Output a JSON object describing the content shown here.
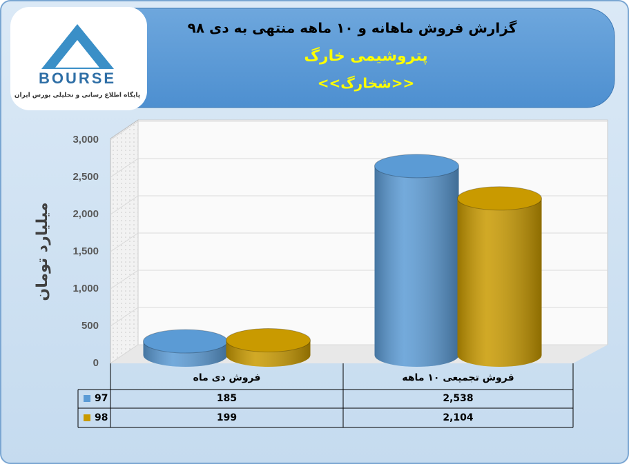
{
  "logo": {
    "name": "BOURSE",
    "tagline": "پایگاه اطلاع رسانی و تحلیلی بورس ایران"
  },
  "chart_data": {
    "type": "cylinder",
    "title": "گزارش فروش ماهانه و ۱۰ ماهه منتهی به دی ۹۸",
    "subtitle": "پتروشیمی خارگ",
    "symbol": "<<شخارگ>>",
    "y_label": "میلیارد تومان",
    "categories": [
      "فروش دی  ماه",
      "فروش تجمیعی ۱۰ ماهه"
    ],
    "series": [
      {
        "name": "97",
        "color": "#5b9bd5",
        "values": [
          185,
          2538
        ],
        "value_labels": [
          "185",
          "2,538"
        ]
      },
      {
        "name": "98",
        "color": "#c99a00",
        "values": [
          199,
          2104
        ],
        "value_labels": [
          "199",
          "2,104"
        ]
      }
    ],
    "ylim": [
      0,
      3000
    ],
    "yticks": [
      0,
      500,
      {
        "value": 1000,
        "label": "1,000"
      },
      {
        "value": 1500,
        "label": "1,500"
      },
      {
        "value": 2000,
        "label": "2,000"
      },
      {
        "value": 2500,
        "label": "2,500"
      },
      {
        "value": 3000,
        "label": "3,000"
      }
    ],
    "grid": true
  }
}
